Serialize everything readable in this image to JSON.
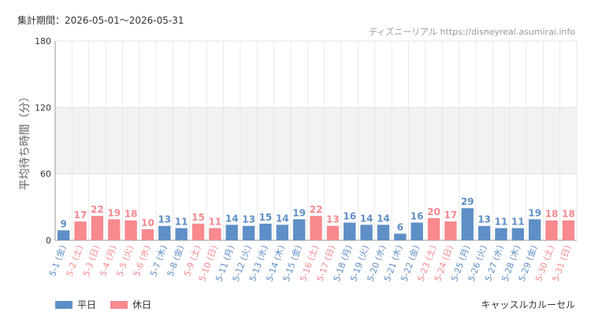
{
  "header": {
    "period": "集計期間：2026-05-01～2026-05-31",
    "credit": "ディズニーリアル https://disneyreal.asumirai.info"
  },
  "legend": {
    "weekday": "平日",
    "holiday": "休日"
  },
  "attraction": "キャッスルカルーセル",
  "colors": {
    "weekday": "#5e8fc6",
    "holiday": "#f7898f",
    "band": "#f2f2f2",
    "grid": "#dddddd"
  },
  "chart_data": {
    "type": "bar",
    "ylabel": "平均待ち時間（分）",
    "ylim": [
      0,
      180
    ],
    "yticks": [
      0,
      60,
      120,
      180
    ],
    "grid": true,
    "categories": [
      "5-1 (金)",
      "5-2 (土)",
      "5-3 (日)",
      "5-4 (月)",
      "5-5 (火)",
      "5-6 (水)",
      "5-7 (木)",
      "5-8 (金)",
      "5-9 (土)",
      "5-10 (日)",
      "5-11 (月)",
      "5-12 (火)",
      "5-13 (水)",
      "5-14 (木)",
      "5-15 (金)",
      "5-16 (土)",
      "5-17 (日)",
      "5-18 (月)",
      "5-19 (火)",
      "5-20 (水)",
      "5-21 (木)",
      "5-22 (金)",
      "5-23 (土)",
      "5-24 (日)",
      "5-25 (月)",
      "5-26 (火)",
      "5-27 (水)",
      "5-28 (木)",
      "5-29 (金)",
      "5-30 (土)",
      "5-31 (日)"
    ],
    "values": [
      9,
      17,
      22,
      19,
      18,
      10,
      13,
      11,
      15,
      11,
      14,
      13,
      15,
      14,
      19,
      22,
      13,
      16,
      14,
      14,
      6,
      16,
      20,
      17,
      29,
      13,
      11,
      11,
      19,
      18,
      18
    ],
    "day_type": [
      "weekday",
      "holiday",
      "holiday",
      "holiday",
      "holiday",
      "holiday",
      "weekday",
      "weekday",
      "holiday",
      "holiday",
      "weekday",
      "weekday",
      "weekday",
      "weekday",
      "weekday",
      "holiday",
      "holiday",
      "weekday",
      "weekday",
      "weekday",
      "weekday",
      "weekday",
      "holiday",
      "holiday",
      "weekday",
      "weekday",
      "weekday",
      "weekday",
      "weekday",
      "holiday",
      "holiday"
    ]
  }
}
